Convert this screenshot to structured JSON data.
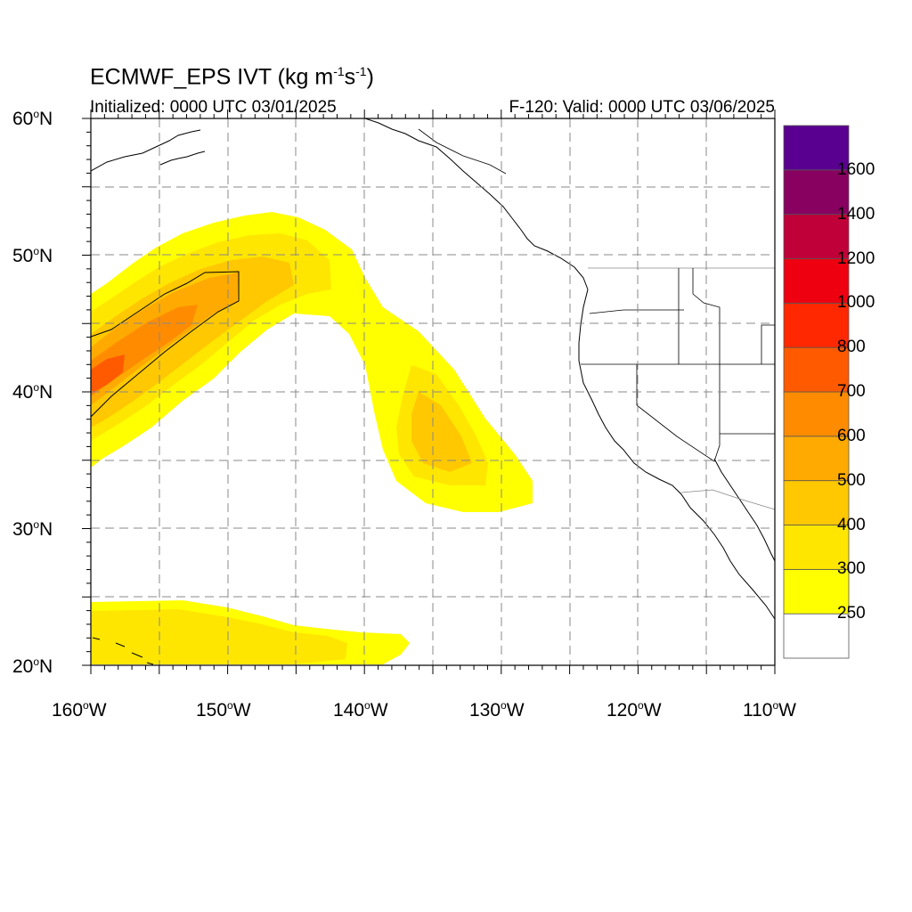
{
  "title": {
    "prefix": "ECMWF_EPS IVT (kg m",
    "exp1": "-1",
    "mid": "s",
    "exp2": "-1",
    "suffix": ")"
  },
  "init_text": "Initialized: 0000 UTC 03/01/2025",
  "valid_text": "F-120: Valid: 0000 UTC 03/06/2025",
  "lat_labels": [
    {
      "value": "60",
      "hemi": "N"
    },
    {
      "value": "50",
      "hemi": "N"
    },
    {
      "value": "40",
      "hemi": "N"
    },
    {
      "value": "30",
      "hemi": "N"
    },
    {
      "value": "20",
      "hemi": "N"
    }
  ],
  "lon_labels": [
    {
      "value": "160",
      "hemi": "W"
    },
    {
      "value": "150",
      "hemi": "W"
    },
    {
      "value": "140",
      "hemi": "W"
    },
    {
      "value": "130",
      "hemi": "W"
    },
    {
      "value": "120",
      "hemi": "W"
    },
    {
      "value": "110",
      "hemi": "W"
    }
  ],
  "map_extent": {
    "lon_min": -160,
    "lon_max": -110,
    "lat_min": 20,
    "lat_max": 60
  },
  "colorbar": {
    "labels": [
      "250",
      "300",
      "400",
      "500",
      "600",
      "700",
      "800",
      "1000",
      "1200",
      "1400",
      "1600"
    ],
    "colors": [
      "#ffffff",
      "#ffff00",
      "#ffe600",
      "#ffc800",
      "#ffaa00",
      "#ff8c00",
      "#ff5a00",
      "#ff2800",
      "#ee0010",
      "#c00038",
      "#880060",
      "#5a0090"
    ]
  }
}
